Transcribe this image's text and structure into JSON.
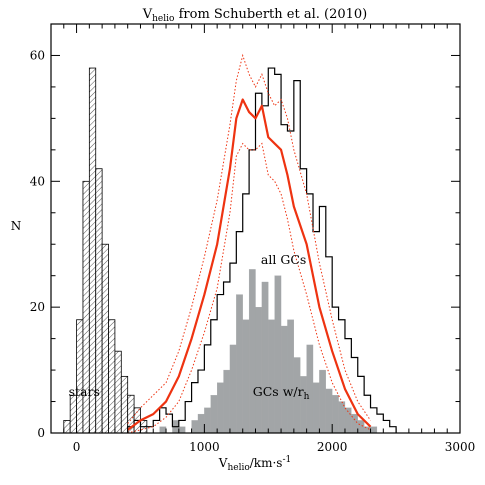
{
  "chart_data": {
    "type": "histogram",
    "title": {
      "main": "V",
      "sub": "helio",
      "rest": " from Schuberth et al. (2010)"
    },
    "xlabel": {
      "main": "V",
      "sub": "helio",
      "rest": "/km·s",
      "sup": "-1"
    },
    "ylabel": "N",
    "xlim": [
      -200,
      3000
    ],
    "ylim": [
      0,
      65
    ],
    "xticks": [
      0,
      1000,
      2000,
      3000
    ],
    "yticks": [
      0,
      20,
      40,
      60
    ],
    "bin_width": 50,
    "series": [
      {
        "name": "stars",
        "style": "hatched",
        "color": "#555555",
        "edges_start": -100,
        "values": [
          2,
          6,
          18,
          40,
          58,
          42,
          30,
          18,
          13,
          9,
          6,
          4,
          2
        ]
      },
      {
        "name": "all GCs",
        "style": "step",
        "color": "#000000",
        "edges_start": 400,
        "values": [
          1,
          2,
          1,
          1,
          2,
          4,
          3,
          1,
          2,
          5,
          8,
          10,
          14,
          18,
          22,
          24,
          27,
          32,
          38,
          45,
          54,
          52,
          58,
          57,
          49,
          48,
          56,
          42,
          38,
          32,
          36,
          28,
          20,
          18,
          15,
          12,
          9,
          6,
          4,
          3,
          2,
          1
        ]
      },
      {
        "name": "GCs w/r_h",
        "style": "filled",
        "color": "#a2a5a7",
        "edges_start": 500,
        "values": [
          0,
          0,
          0,
          1,
          0,
          2,
          1,
          0,
          2,
          3,
          4,
          6,
          8,
          10,
          14,
          22,
          18,
          26,
          20,
          24,
          18,
          25,
          17,
          18,
          12,
          9,
          14,
          8,
          10,
          7,
          6,
          5,
          4,
          3,
          2,
          1,
          1,
          0
        ]
      }
    ],
    "smooth_curve": {
      "color": "#ee3311",
      "x": [
        400,
        500,
        600,
        700,
        800,
        900,
        1000,
        1100,
        1150,
        1200,
        1250,
        1300,
        1350,
        1400,
        1450,
        1500,
        1550,
        1600,
        1650,
        1700,
        1750,
        1800,
        1900,
        2000,
        2100,
        2200,
        2300
      ],
      "y": [
        0.5,
        2,
        3,
        5,
        9,
        15,
        22,
        30,
        36,
        42,
        50,
        53,
        51,
        50,
        52,
        47,
        46,
        45,
        41,
        36,
        33,
        30,
        20,
        13,
        7,
        3,
        1
      ]
    },
    "smooth_upper": {
      "x": [
        400,
        500,
        600,
        700,
        800,
        900,
        1000,
        1100,
        1200,
        1250,
        1300,
        1350,
        1400,
        1450,
        1500,
        1550,
        1600,
        1650,
        1700,
        1800,
        1900,
        2000,
        2100,
        2200,
        2300
      ],
      "y": [
        1.5,
        4,
        6,
        8,
        13,
        20,
        28,
        37,
        49,
        56,
        60,
        57,
        55,
        57,
        54,
        52,
        53,
        50,
        45,
        38,
        27,
        18,
        10,
        5,
        2
      ]
    },
    "smooth_lower": {
      "x": [
        400,
        500,
        600,
        700,
        800,
        900,
        1000,
        1100,
        1200,
        1250,
        1300,
        1350,
        1400,
        1450,
        1500,
        1550,
        1600,
        1650,
        1700,
        1800,
        1900,
        2000,
        2100,
        2200,
        2300
      ],
      "y": [
        0,
        0.5,
        1,
        2.5,
        5,
        10,
        16,
        23,
        35,
        44,
        46,
        45,
        45,
        46,
        41,
        40,
        38,
        34,
        29,
        22,
        14,
        8,
        4,
        1.5,
        0.5
      ]
    },
    "annotations": [
      {
        "text": "stars",
        "x": 60,
        "y": 6.5
      },
      {
        "text": "all GCs",
        "x": 1620,
        "y": 27.5
      },
      {
        "text_main": "GCs w/r",
        "text_sub": "h",
        "x": 1600,
        "y": 6.5
      }
    ]
  }
}
